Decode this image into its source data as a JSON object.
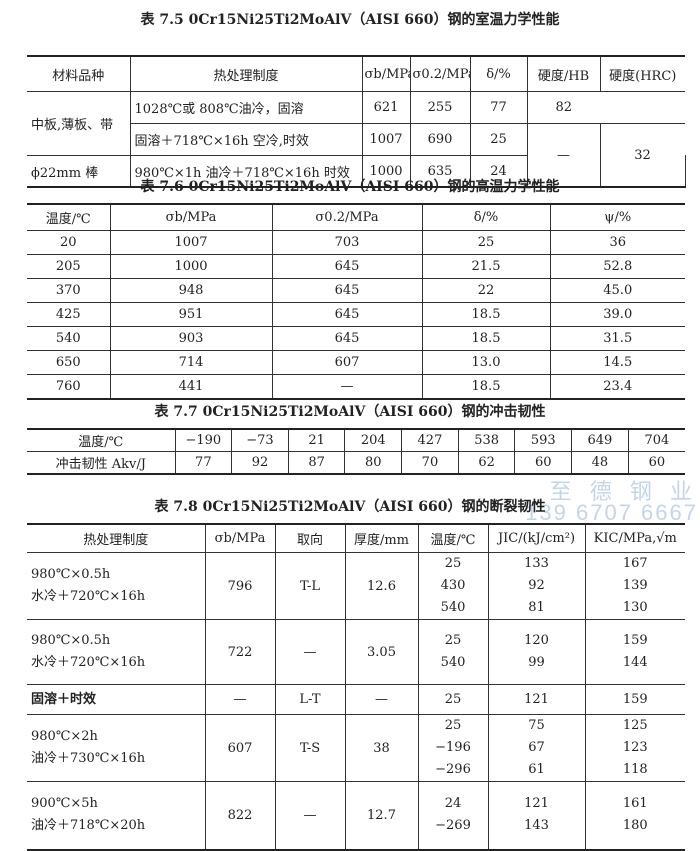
{
  "t75": {
    "title": "表 7.5  0Cr15Ni25Ti2MoAlV（AISI 660）钢的室温力学性能",
    "headers": [
      "材料品种",
      "热处理制度",
      "σb/MPa",
      "σ0.2/MPa",
      "δ/%",
      "硬度/HB",
      "硬度(HRC)"
    ],
    "rows": [
      [
        "中板,薄板、带",
        "1028℃或 808℃油冷，固溶",
        "621",
        "255",
        "77",
        "82",
        ""
      ],
      [
        "",
        "固溶＋718℃×16h 空冷,时效",
        "1007",
        "690",
        "25",
        "—",
        "32"
      ],
      [
        "ϕ22mm 棒",
        "980℃×1h 油冷＋718℃×16h 时效",
        "1000",
        "635",
        "24",
        "",
        ""
      ]
    ]
  },
  "t76": {
    "title": "表 7.6  0Cr15Ni25Ti2MoAlV（AISI 660）钢的高温力学性能",
    "headers": [
      "温度/℃",
      "σb/MPa",
      "σ0.2/MPa",
      "δ/%",
      "ψ/%"
    ],
    "rows": [
      [
        "20",
        "1007",
        "703",
        "25",
        "36"
      ],
      [
        "205",
        "1000",
        "645",
        "21.5",
        "52.8"
      ],
      [
        "370",
        "948",
        "645",
        "22",
        "45.0"
      ],
      [
        "425",
        "951",
        "645",
        "18.5",
        "39.0"
      ],
      [
        "540",
        "903",
        "645",
        "18.5",
        "31.5"
      ],
      [
        "650",
        "714",
        "607",
        "13.0",
        "14.5"
      ],
      [
        "760",
        "441",
        "—",
        "18.5",
        "23.4"
      ]
    ]
  },
  "t77": {
    "title": "表 7.7  0Cr15Ni25Ti2MoAlV（AISI 660）钢的冲击韧性",
    "rows": [
      [
        "温度/℃",
        "−190",
        "−73",
        "21",
        "204",
        "427",
        "538",
        "593",
        "649",
        "704"
      ],
      [
        "冲击韧性 Akv/J",
        "77",
        "92",
        "87",
        "80",
        "70",
        "62",
        "60",
        "48",
        "60"
      ]
    ]
  },
  "t78": {
    "title": "表 7.8  0Cr15Ni25Ti2MoAlV（AISI 660）钢的断裂韧性",
    "headers": [
      "热处理制度",
      "σb/MPa",
      "取向",
      "厚度/mm",
      "温度/℃",
      "JIC/(kJ/cm²)",
      "KIC/MPa,√m"
    ],
    "groups": [
      {
        "treatment": [
          "980℃×0.5h",
          "水冷＋720℃×16h"
        ],
        "sigma": "796",
        "orient": "T-L",
        "thick": "12.6",
        "temps": [
          "25",
          "430",
          "540"
        ],
        "j": [
          "133",
          "92",
          "81"
        ],
        "k": [
          "167",
          "139",
          "130"
        ]
      },
      {
        "treatment": [
          "980℃×0.5h",
          "水冷＋720℃×16h"
        ],
        "sigma": "722",
        "orient": "—",
        "thick": "3.05",
        "temps": [
          "25",
          "540"
        ],
        "j": [
          "120",
          "99"
        ],
        "k": [
          "159",
          "144"
        ]
      },
      {
        "treatment": [
          "固溶＋时效"
        ],
        "sigma": "—",
        "orient": "L-T",
        "thick": "—",
        "temps": [
          "25"
        ],
        "j": [
          "121"
        ],
        "k": [
          "159"
        ]
      },
      {
        "treatment": [
          "980℃×2h",
          "油冷＋730℃×16h"
        ],
        "sigma": "607",
        "orient": "T-S",
        "thick": "38",
        "temps": [
          "25",
          "−196",
          "−296"
        ],
        "j": [
          "75",
          "67",
          "61"
        ],
        "k": [
          "125",
          "123",
          "118"
        ]
      },
      {
        "treatment": [
          "900℃×5h",
          "油冷＋718℃×20h"
        ],
        "sigma": "822",
        "orient": "—",
        "thick": "12.7",
        "temps": [
          "24",
          "−269"
        ],
        "j": [
          "121",
          "143"
        ],
        "k": [
          "161",
          "180"
        ]
      }
    ]
  },
  "watermark": {
    "line1": "至 德 钢 业",
    "line2": "139 6707 6667"
  }
}
